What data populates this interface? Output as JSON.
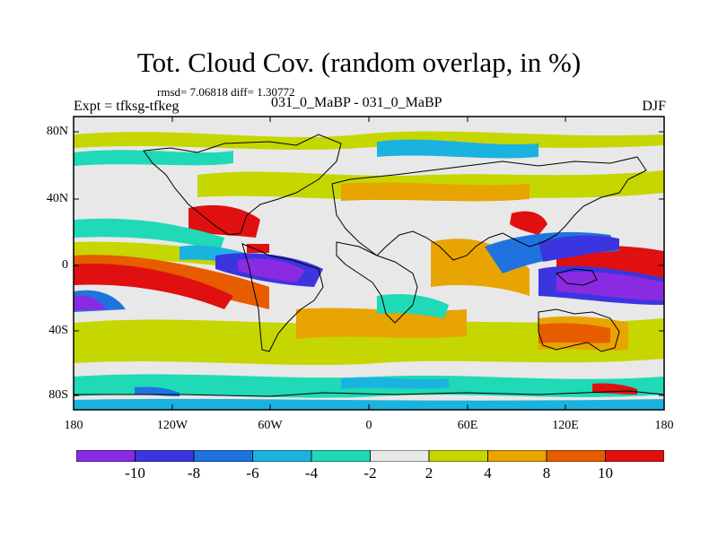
{
  "title": "Tot. Cloud Cov. (random overlap, in %)",
  "stats": "rmsd= 7.06818 diff= 1.30772",
  "left_text": "Expt = tfksg-tfkeg",
  "center_text": "031_0_MaBP - 031_0_MaBP",
  "right_text": "DJF",
  "lat_labels": [
    "80N",
    "40N",
    "0",
    "40S",
    "80S"
  ],
  "lon_labels": [
    "180",
    "120W",
    "60W",
    "0",
    "60E",
    "120E",
    "180"
  ],
  "colorbar": {
    "levels": [
      "-10",
      "-8",
      "-6",
      "-4",
      "-2",
      "2",
      "4",
      "8",
      "10"
    ],
    "colors": [
      "#8a2be2",
      "#3b35e0",
      "#1f73e0",
      "#1ab3e0",
      "#20d9b6",
      "#e8e8e8",
      "#c6d600",
      "#e8a400",
      "#e85c00",
      "#e01010"
    ]
  }
}
